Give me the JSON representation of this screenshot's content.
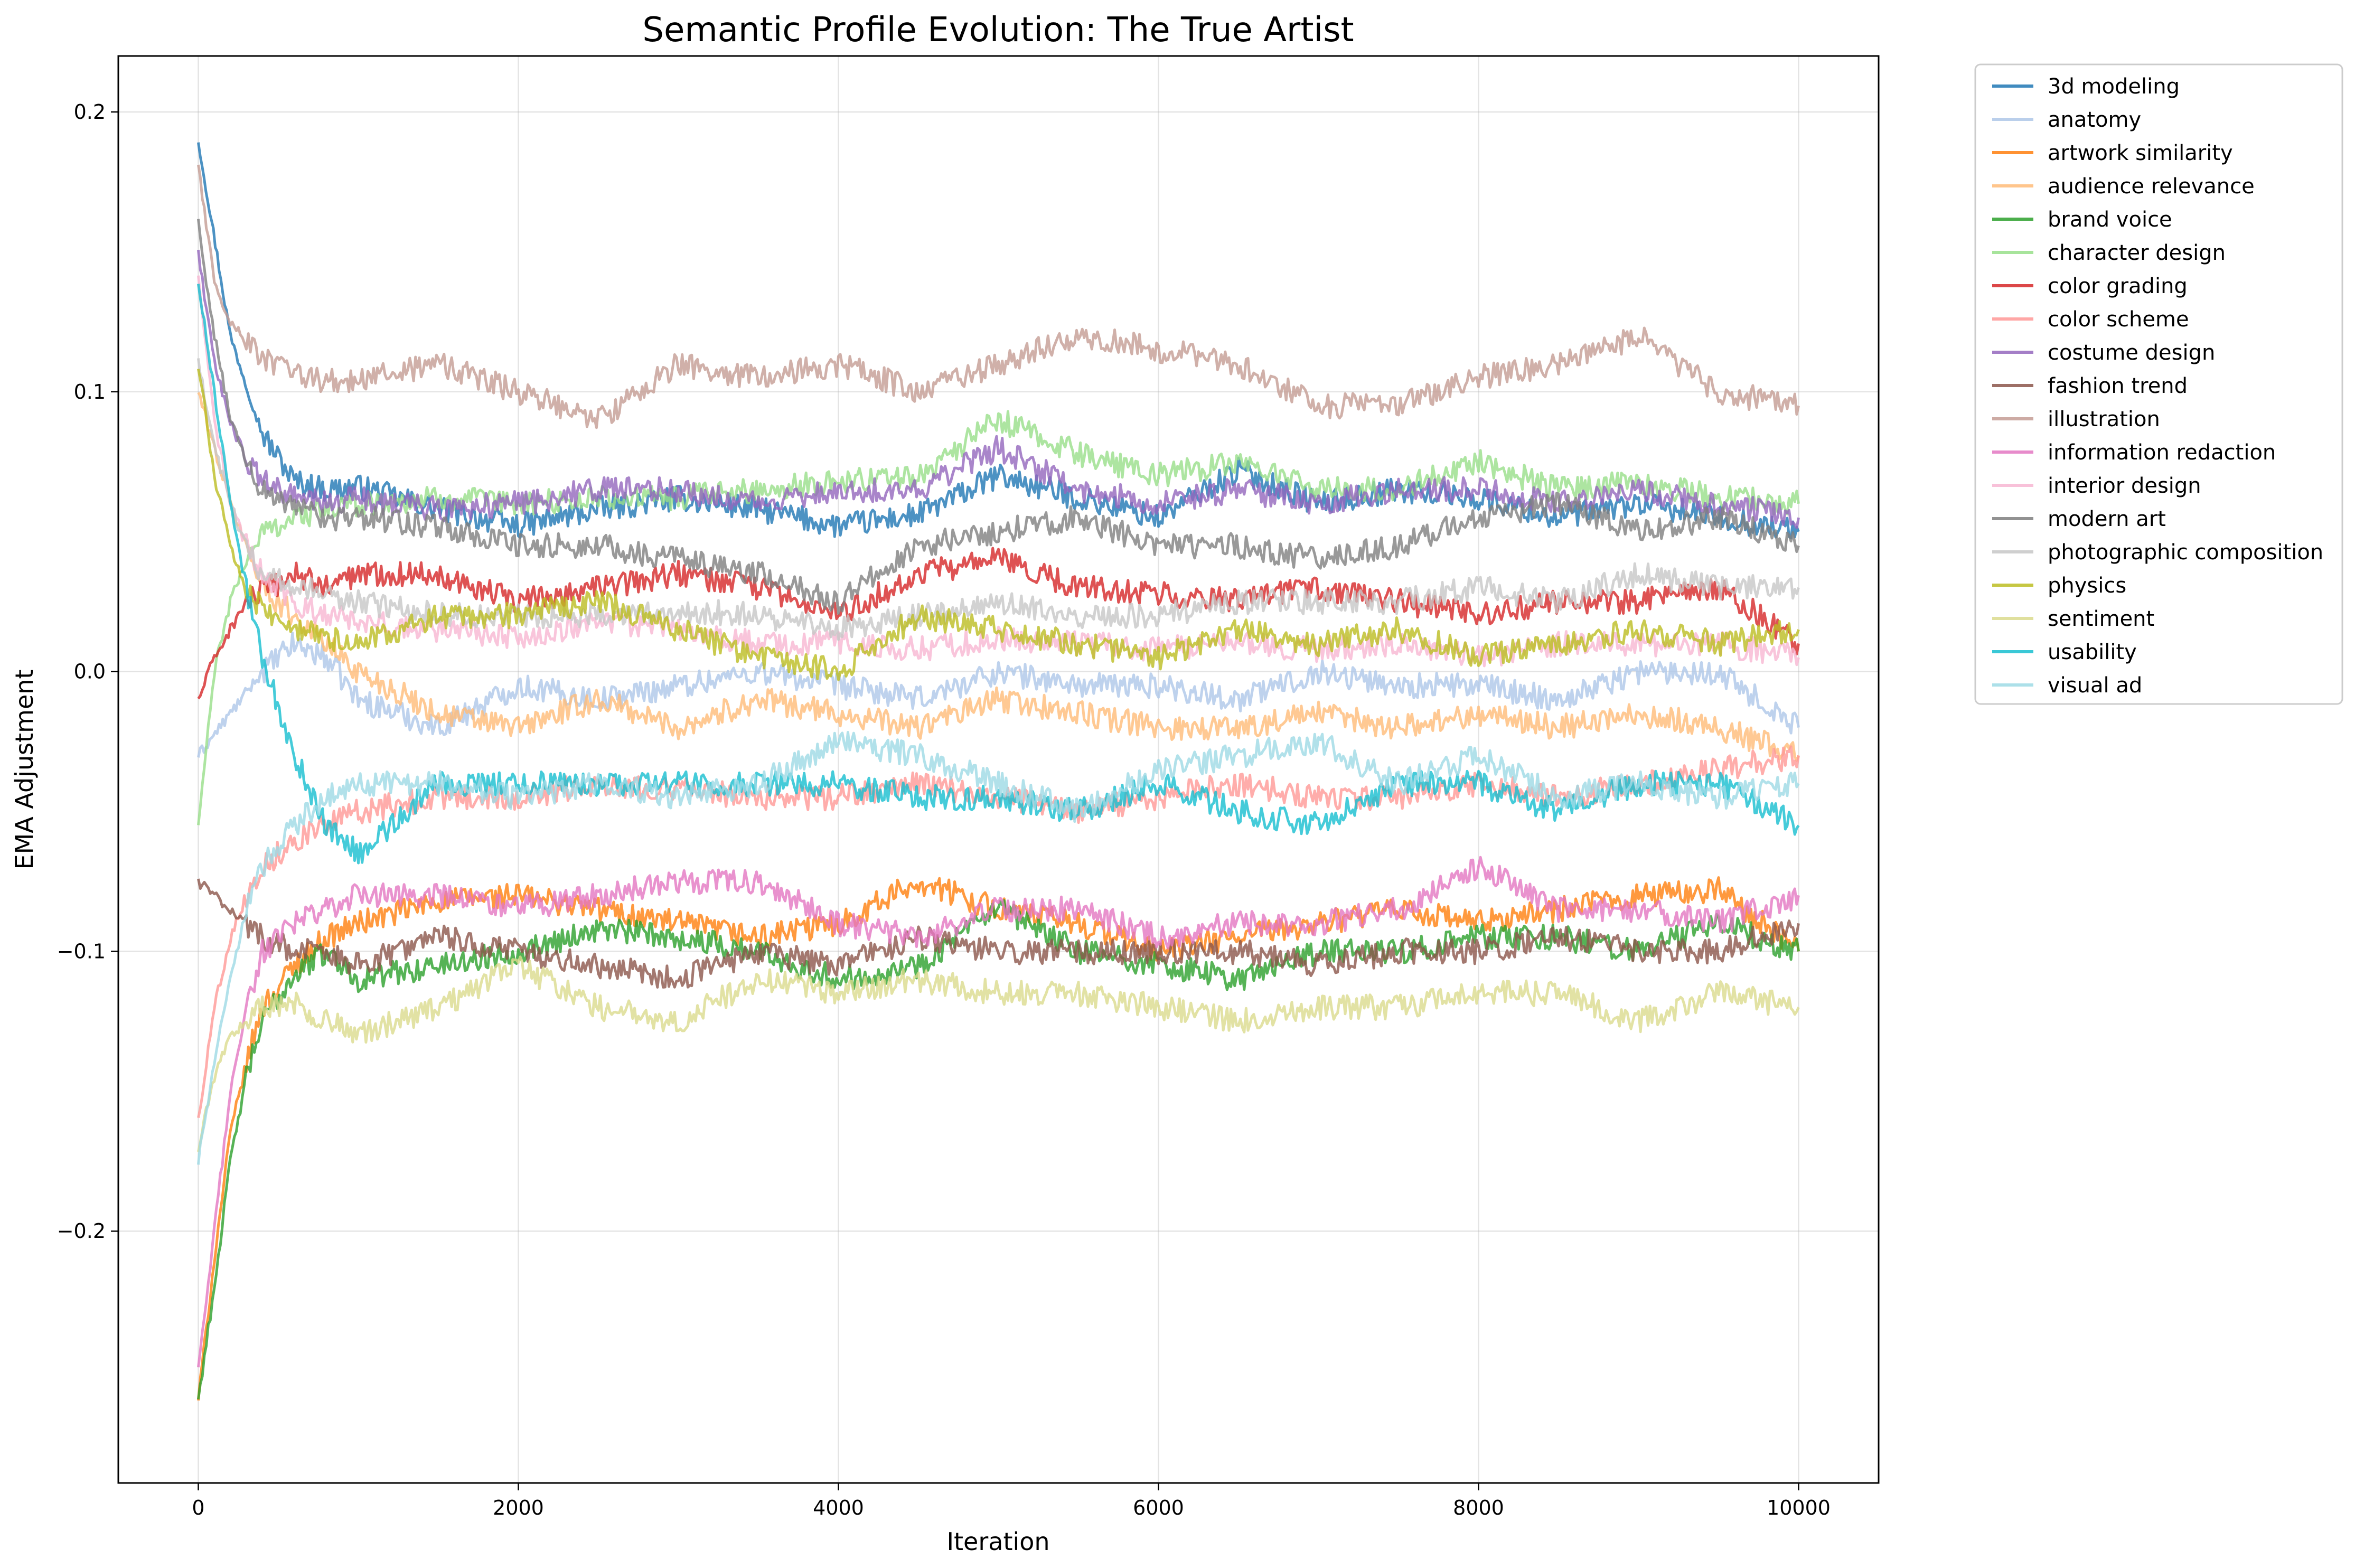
{
  "chart_data": {
    "type": "line",
    "title": "Semantic Profile Evolution: The True Artist",
    "xlabel": "Iteration",
    "ylabel": "EMA Adjustment",
    "xlim": [
      -500,
      10500
    ],
    "ylim": [
      -0.29,
      0.22
    ],
    "xticks": [
      0,
      2000,
      4000,
      6000,
      8000,
      10000
    ],
    "xtick_labels": [
      "0",
      "2000",
      "4000",
      "6000",
      "8000",
      "10000"
    ],
    "yticks": [
      -0.2,
      -0.1,
      0.0,
      0.1,
      0.2
    ],
    "ytick_labels": [
      "−0.2",
      "−0.1",
      "0.0",
      "0.1",
      "0.2"
    ],
    "grid": true,
    "legend_placement": "outside-right-top",
    "series": [
      {
        "name": "3d modeling",
        "color": "#1f77b4",
        "x": [
          0,
          200,
          400,
          600,
          800,
          1000,
          1500,
          2000,
          2500,
          3000,
          3500,
          4000,
          4500,
          5000,
          5500,
          6000,
          6500,
          7000,
          7500,
          8000,
          8500,
          9000,
          9500,
          10000
        ],
        "values": [
          0.19,
          0.12,
          0.085,
          0.068,
          0.065,
          0.066,
          0.058,
          0.052,
          0.058,
          0.062,
          0.058,
          0.052,
          0.056,
          0.07,
          0.062,
          0.055,
          0.072,
          0.06,
          0.065,
          0.062,
          0.055,
          0.06,
          0.055,
          0.05
        ]
      },
      {
        "name": "anatomy",
        "color": "#aec7e8",
        "x": [
          0,
          200,
          400,
          600,
          800,
          1000,
          1500,
          2000,
          2500,
          3000,
          3500,
          4000,
          4500,
          5000,
          5500,
          6000,
          6500,
          7000,
          7500,
          8000,
          8500,
          9000,
          9500,
          10000
        ],
        "values": [
          -0.03,
          -0.015,
          0.0,
          0.01,
          0.005,
          -0.01,
          -0.02,
          -0.005,
          -0.01,
          -0.005,
          0.0,
          -0.005,
          -0.01,
          0.0,
          -0.005,
          -0.005,
          -0.01,
          0.0,
          -0.005,
          -0.005,
          -0.01,
          0.0,
          0.0,
          -0.02
        ]
      },
      {
        "name": "artwork similarity",
        "color": "#ff7f0e",
        "x": [
          0,
          100,
          200,
          300,
          400,
          600,
          800,
          1000,
          1500,
          2000,
          2500,
          3000,
          3500,
          4000,
          4500,
          5000,
          5500,
          6000,
          6500,
          7000,
          7500,
          8000,
          8500,
          9000,
          9500,
          10000
        ],
        "values": [
          -0.26,
          -0.21,
          -0.165,
          -0.14,
          -0.12,
          -0.105,
          -0.095,
          -0.09,
          -0.082,
          -0.08,
          -0.085,
          -0.09,
          -0.095,
          -0.09,
          -0.075,
          -0.085,
          -0.09,
          -0.1,
          -0.095,
          -0.09,
          -0.085,
          -0.09,
          -0.085,
          -0.08,
          -0.078,
          -0.1
        ]
      },
      {
        "name": "audience relevance",
        "color": "#ffbb78",
        "x": [
          0,
          200,
          400,
          600,
          800,
          1000,
          1500,
          2000,
          2500,
          3000,
          3500,
          4000,
          4500,
          5000,
          5500,
          6000,
          6500,
          7000,
          7500,
          8000,
          8500,
          9000,
          9500,
          10000
        ],
        "values": [
          0.1,
          0.06,
          0.03,
          0.02,
          0.01,
          0.0,
          -0.015,
          -0.02,
          -0.01,
          -0.02,
          -0.01,
          -0.015,
          -0.02,
          -0.01,
          -0.015,
          -0.02,
          -0.02,
          -0.015,
          -0.02,
          -0.015,
          -0.02,
          -0.015,
          -0.02,
          -0.03
        ]
      },
      {
        "name": "brand voice",
        "color": "#2ca02c",
        "x": [
          0,
          100,
          200,
          300,
          400,
          600,
          800,
          1000,
          1500,
          2000,
          2500,
          3000,
          3500,
          4000,
          4500,
          5000,
          5500,
          6000,
          6500,
          7000,
          7500,
          8000,
          8500,
          9000,
          9500,
          10000
        ],
        "values": [
          -0.26,
          -0.22,
          -0.175,
          -0.145,
          -0.125,
          -0.108,
          -0.1,
          -0.11,
          -0.105,
          -0.1,
          -0.092,
          -0.095,
          -0.1,
          -0.11,
          -0.105,
          -0.085,
          -0.1,
          -0.105,
          -0.11,
          -0.1,
          -0.1,
          -0.095,
          -0.095,
          -0.1,
          -0.09,
          -0.1
        ]
      },
      {
        "name": "character design",
        "color": "#98df8a",
        "x": [
          0,
          100,
          200,
          300,
          400,
          600,
          800,
          1000,
          1500,
          2000,
          2500,
          3000,
          3500,
          4000,
          4500,
          5000,
          5500,
          6000,
          6500,
          7000,
          7500,
          8000,
          8500,
          9000,
          9500,
          10000
        ],
        "values": [
          -0.055,
          0.0,
          0.025,
          0.04,
          0.05,
          0.055,
          0.058,
          0.06,
          0.062,
          0.06,
          0.062,
          0.062,
          0.065,
          0.068,
          0.07,
          0.09,
          0.078,
          0.07,
          0.075,
          0.065,
          0.065,
          0.075,
          0.065,
          0.068,
          0.062,
          0.06
        ]
      },
      {
        "name": "color grading",
        "color": "#d62728",
        "x": [
          0,
          100,
          200,
          300,
          400,
          600,
          800,
          1000,
          1500,
          2000,
          2500,
          3000,
          3500,
          4000,
          4500,
          5000,
          5500,
          6000,
          6500,
          7000,
          7500,
          8000,
          8500,
          9000,
          9500,
          10000
        ],
        "values": [
          -0.01,
          0.005,
          0.015,
          0.025,
          0.028,
          0.035,
          0.03,
          0.035,
          0.035,
          0.025,
          0.03,
          0.035,
          0.03,
          0.02,
          0.035,
          0.04,
          0.03,
          0.028,
          0.025,
          0.03,
          0.025,
          0.02,
          0.025,
          0.025,
          0.03,
          0.01
        ]
      },
      {
        "name": "color scheme",
        "color": "#ff9896",
        "x": [
          0,
          100,
          200,
          300,
          400,
          600,
          800,
          1000,
          1500,
          2000,
          2500,
          3000,
          3500,
          4000,
          4500,
          5000,
          5500,
          6000,
          6500,
          7000,
          7500,
          8000,
          8500,
          9000,
          9500,
          10000
        ],
        "values": [
          -0.16,
          -0.12,
          -0.095,
          -0.08,
          -0.07,
          -0.06,
          -0.055,
          -0.05,
          -0.045,
          -0.045,
          -0.04,
          -0.042,
          -0.045,
          -0.045,
          -0.04,
          -0.045,
          -0.05,
          -0.045,
          -0.04,
          -0.045,
          -0.045,
          -0.04,
          -0.045,
          -0.04,
          -0.035,
          -0.03
        ]
      },
      {
        "name": "costume design",
        "color": "#9467bd",
        "x": [
          0,
          100,
          200,
          300,
          400,
          600,
          800,
          1000,
          1500,
          2000,
          2500,
          3000,
          3500,
          4000,
          4500,
          5000,
          5500,
          6000,
          6500,
          7000,
          7500,
          8000,
          8500,
          9000,
          9500,
          10000
        ],
        "values": [
          0.15,
          0.11,
          0.09,
          0.075,
          0.068,
          0.062,
          0.06,
          0.062,
          0.058,
          0.06,
          0.065,
          0.065,
          0.06,
          0.065,
          0.065,
          0.08,
          0.065,
          0.06,
          0.065,
          0.06,
          0.065,
          0.065,
          0.06,
          0.065,
          0.06,
          0.055
        ]
      },
      {
        "name": "fashion trend",
        "color": "#8c564b",
        "x": [
          0,
          100,
          200,
          300,
          400,
          600,
          800,
          1000,
          1500,
          2000,
          2500,
          3000,
          3500,
          4000,
          4500,
          5000,
          5500,
          6000,
          6500,
          7000,
          7500,
          8000,
          8500,
          9000,
          9500,
          10000
        ],
        "values": [
          -0.075,
          -0.08,
          -0.085,
          -0.09,
          -0.095,
          -0.1,
          -0.1,
          -0.105,
          -0.095,
          -0.1,
          -0.105,
          -0.11,
          -0.1,
          -0.105,
          -0.095,
          -0.1,
          -0.1,
          -0.1,
          -0.1,
          -0.105,
          -0.1,
          -0.1,
          -0.095,
          -0.1,
          -0.1,
          -0.09
        ]
      },
      {
        "name": "illustration",
        "color": "#c49c94",
        "x": [
          0,
          100,
          200,
          300,
          400,
          600,
          800,
          1000,
          1500,
          2000,
          2500,
          3000,
          3500,
          4000,
          4500,
          5000,
          5500,
          6000,
          6500,
          7000,
          7500,
          8000,
          8500,
          9000,
          9500,
          10000
        ],
        "values": [
          0.18,
          0.14,
          0.125,
          0.118,
          0.112,
          0.106,
          0.104,
          0.104,
          0.11,
          0.1,
          0.09,
          0.11,
          0.105,
          0.11,
          0.1,
          0.11,
          0.12,
          0.115,
          0.11,
          0.095,
          0.095,
          0.105,
          0.11,
          0.12,
          0.1,
          0.095
        ]
      },
      {
        "name": "information redaction",
        "color": "#e377c2",
        "x": [
          0,
          100,
          200,
          300,
          400,
          600,
          800,
          1000,
          1500,
          2000,
          2500,
          3000,
          3500,
          4000,
          4500,
          5000,
          5500,
          6000,
          6500,
          7000,
          7500,
          8000,
          8500,
          9000,
          9500,
          10000
        ],
        "values": [
          -0.25,
          -0.2,
          -0.15,
          -0.12,
          -0.1,
          -0.09,
          -0.085,
          -0.08,
          -0.08,
          -0.085,
          -0.08,
          -0.075,
          -0.075,
          -0.09,
          -0.095,
          -0.085,
          -0.085,
          -0.095,
          -0.09,
          -0.09,
          -0.085,
          -0.07,
          -0.085,
          -0.085,
          -0.09,
          -0.08
        ]
      },
      {
        "name": "interior design",
        "color": "#f7b6d2",
        "x": [
          0,
          100,
          200,
          300,
          400,
          600,
          800,
          1000,
          1500,
          2000,
          2500,
          3000,
          3500,
          4000,
          4500,
          5000,
          5500,
          6000,
          6500,
          7000,
          7500,
          8000,
          8500,
          9000,
          9500,
          10000
        ],
        "values": [
          0.14,
          0.09,
          0.06,
          0.045,
          0.035,
          0.025,
          0.02,
          0.018,
          0.015,
          0.012,
          0.018,
          0.015,
          0.01,
          0.01,
          0.008,
          0.012,
          0.01,
          0.008,
          0.01,
          0.008,
          0.01,
          0.005,
          0.01,
          0.01,
          0.01,
          0.005
        ]
      },
      {
        "name": "modern art",
        "color": "#7f7f7f",
        "x": [
          0,
          100,
          200,
          300,
          400,
          600,
          800,
          1000,
          1500,
          2000,
          2500,
          3000,
          3500,
          4000,
          4500,
          5000,
          5500,
          6000,
          6500,
          7000,
          7500,
          8000,
          8500,
          9000,
          9500,
          10000
        ],
        "values": [
          0.16,
          0.12,
          0.09,
          0.075,
          0.065,
          0.058,
          0.055,
          0.055,
          0.052,
          0.045,
          0.045,
          0.04,
          0.035,
          0.025,
          0.045,
          0.05,
          0.055,
          0.045,
          0.045,
          0.04,
          0.045,
          0.055,
          0.06,
          0.05,
          0.055,
          0.045
        ]
      },
      {
        "name": "photographic composition",
        "color": "#c7c7c7",
        "x": [
          0,
          100,
          200,
          300,
          400,
          600,
          800,
          1000,
          1500,
          2000,
          2500,
          3000,
          3500,
          4000,
          4500,
          5000,
          5500,
          6000,
          6500,
          7000,
          7500,
          8000,
          8500,
          9000,
          9500,
          10000
        ],
        "values": [
          0.11,
          0.08,
          0.06,
          0.045,
          0.035,
          0.03,
          0.028,
          0.025,
          0.02,
          0.02,
          0.02,
          0.022,
          0.02,
          0.015,
          0.02,
          0.025,
          0.02,
          0.02,
          0.025,
          0.025,
          0.025,
          0.03,
          0.025,
          0.035,
          0.03,
          0.03
        ]
      },
      {
        "name": "physics",
        "color": "#bcbd22",
        "x": [
          0,
          100,
          200,
          300,
          400,
          600,
          800,
          1000,
          1500,
          2000,
          2500,
          3000,
          3500,
          4000,
          4500,
          5000,
          5500,
          6000,
          6500,
          7000,
          7500,
          8000,
          8500,
          9000,
          9500,
          10000
        ],
        "values": [
          0.11,
          0.07,
          0.045,
          0.03,
          0.022,
          0.015,
          0.012,
          0.01,
          0.02,
          0.02,
          0.025,
          0.015,
          0.005,
          0.0,
          0.02,
          0.015,
          0.01,
          0.005,
          0.015,
          0.01,
          0.015,
          0.005,
          0.01,
          0.015,
          0.01,
          0.015
        ]
      },
      {
        "name": "sentiment",
        "color": "#dbdb8d",
        "x": [
          0,
          100,
          200,
          300,
          400,
          600,
          800,
          1000,
          1500,
          2000,
          2500,
          3000,
          3500,
          4000,
          4500,
          5000,
          5500,
          6000,
          6500,
          7000,
          7500,
          8000,
          8500,
          9000,
          9500,
          10000
        ],
        "values": [
          -0.17,
          -0.145,
          -0.13,
          -0.125,
          -0.12,
          -0.118,
          -0.125,
          -0.13,
          -0.12,
          -0.105,
          -0.12,
          -0.125,
          -0.11,
          -0.115,
          -0.11,
          -0.115,
          -0.115,
          -0.12,
          -0.125,
          -0.12,
          -0.12,
          -0.115,
          -0.115,
          -0.125,
          -0.115,
          -0.12
        ]
      },
      {
        "name": "usability",
        "color": "#17becf",
        "x": [
          0,
          100,
          200,
          300,
          400,
          600,
          800,
          1000,
          1500,
          2000,
          2500,
          3000,
          3500,
          4000,
          4500,
          5000,
          5500,
          6000,
          6500,
          7000,
          7500,
          8000,
          8500,
          9000,
          9500,
          10000
        ],
        "values": [
          0.14,
          0.1,
          0.06,
          0.03,
          0.005,
          -0.03,
          -0.055,
          -0.065,
          -0.04,
          -0.04,
          -0.04,
          -0.04,
          -0.04,
          -0.04,
          -0.045,
          -0.045,
          -0.05,
          -0.04,
          -0.05,
          -0.055,
          -0.04,
          -0.04,
          -0.05,
          -0.04,
          -0.04,
          -0.055
        ]
      },
      {
        "name": "visual ad",
        "color": "#9edae5",
        "x": [
          0,
          100,
          200,
          300,
          400,
          600,
          800,
          1000,
          1500,
          2000,
          2500,
          3000,
          3500,
          4000,
          4500,
          5000,
          5500,
          6000,
          6500,
          7000,
          7500,
          8000,
          8500,
          9000,
          9500,
          10000
        ],
        "values": [
          -0.175,
          -0.14,
          -0.11,
          -0.085,
          -0.07,
          -0.055,
          -0.045,
          -0.04,
          -0.04,
          -0.045,
          -0.04,
          -0.045,
          -0.04,
          -0.025,
          -0.03,
          -0.04,
          -0.05,
          -0.035,
          -0.03,
          -0.025,
          -0.04,
          -0.03,
          -0.045,
          -0.04,
          -0.045,
          -0.04
        ]
      }
    ]
  }
}
